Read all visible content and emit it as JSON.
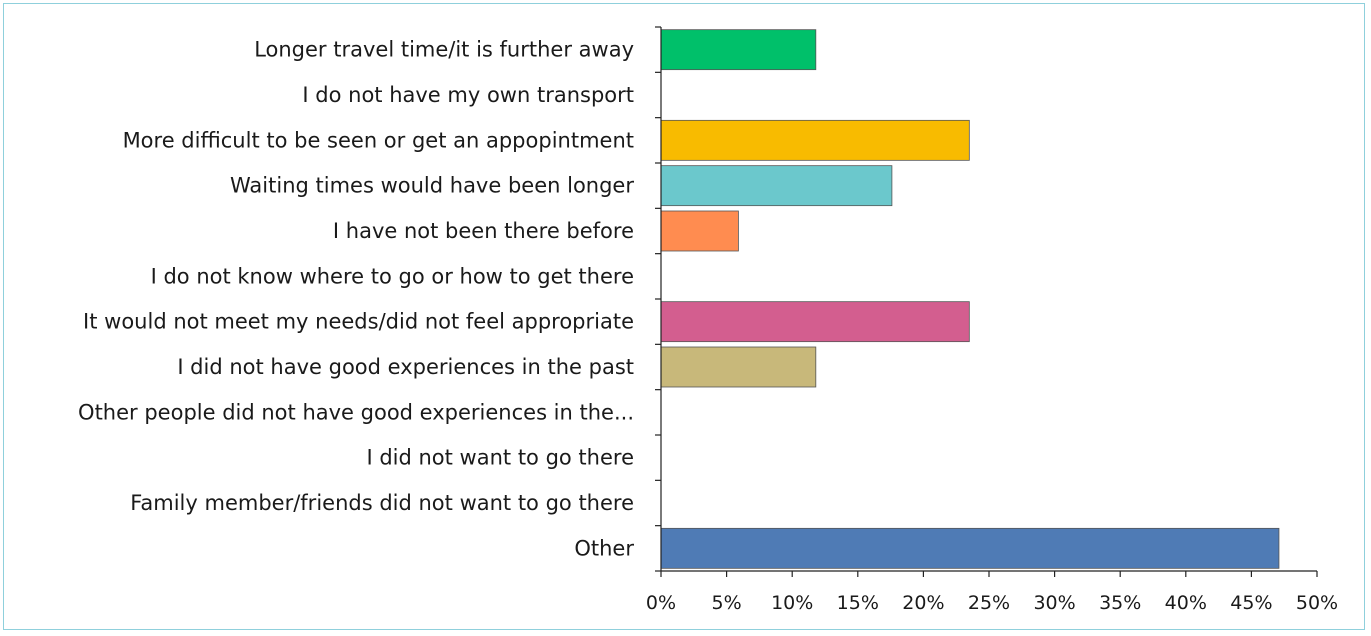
{
  "chart_data": {
    "type": "bar",
    "orientation": "horizontal",
    "categories": [
      "Longer travel time/it is further away",
      "I do not have my own transport",
      "More difficult to be seen or get an appopintment",
      "Waiting times would have been longer",
      "I have not been there before",
      "I do not know where to go or how to get there",
      "It would not meet my needs/did not feel appropriate",
      "I did not have good experiences in the past",
      "Other people did not have good experiences in the...",
      "I did not want to go there",
      "Family member/friends did not want to go there",
      "Other"
    ],
    "values": [
      11.8,
      0,
      23.5,
      17.6,
      5.9,
      0,
      23.5,
      11.8,
      0,
      0,
      0,
      47.1
    ],
    "colors": [
      "#00c06a",
      "#cccccc",
      "#f8bb00",
      "#6bc8cc",
      "#ff8c50",
      "#cccccc",
      "#d35e8f",
      "#c8b87a",
      "#cccccc",
      "#cccccc",
      "#cccccc",
      "#4f7bb5"
    ],
    "xlim": [
      0,
      50
    ],
    "xticks": [
      "0%",
      "5%",
      "10%",
      "15%",
      "20%",
      "25%",
      "30%",
      "35%",
      "40%",
      "45%",
      "50%"
    ],
    "grid": false,
    "legend": "none"
  }
}
